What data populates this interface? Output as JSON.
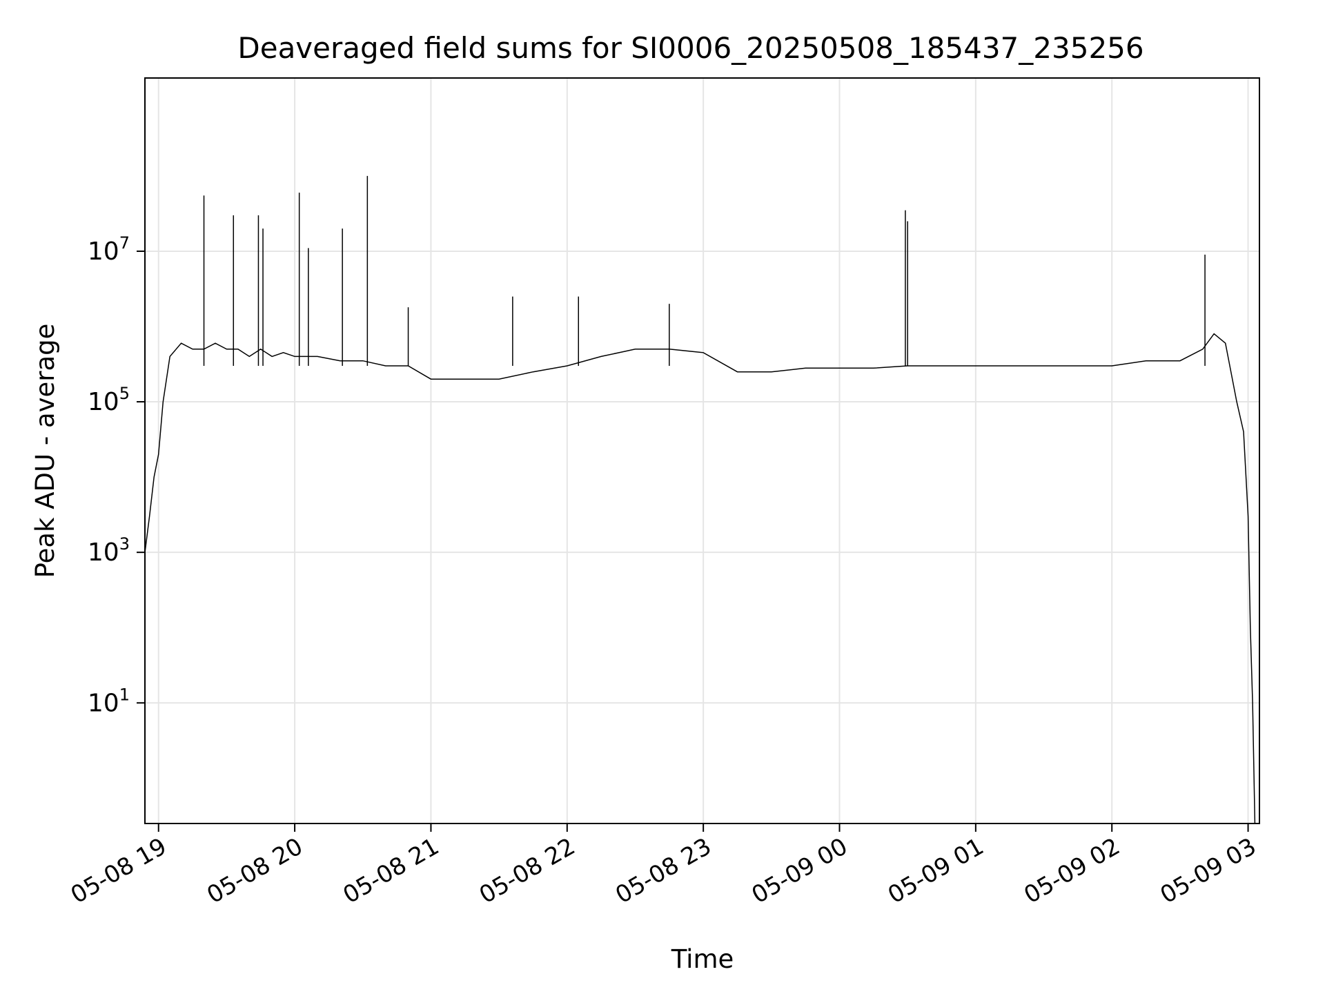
{
  "chart_data": {
    "type": "line",
    "title": "Deaveraged field sums for SI0006_20250508_185437_235256",
    "xlabel": "Time",
    "ylabel": "Peak ADU - average",
    "y_scale": "log",
    "grid": true,
    "legend": "none",
    "x_range": [
      "05-08 18:54",
      "05-09 03:05"
    ],
    "ylim": [
      0.25,
      2000000000
    ],
    "x_tick_labels": [
      "05-08 19",
      "05-08 20",
      "05-08 21",
      "05-08 22",
      "05-08 23",
      "05-09 00",
      "05-09 01",
      "05-09 02",
      "05-09 03"
    ],
    "x_ticks": [
      "05-08 19:00",
      "05-08 20:00",
      "05-08 21:00",
      "05-08 22:00",
      "05-08 23:00",
      "05-09 00:00",
      "05-09 01:00",
      "05-09 02:00",
      "05-09 03:00"
    ],
    "y_tick_labels": [
      {
        "base": "10",
        "exp": "1",
        "value": 10
      },
      {
        "base": "10",
        "exp": "3",
        "value": 1000
      },
      {
        "base": "10",
        "exp": "5",
        "value": 100000
      },
      {
        "base": "10",
        "exp": "7",
        "value": 10000000
      }
    ],
    "colors": {
      "line": "#000000",
      "grid": "#e5e5e5",
      "axes": "#000000"
    },
    "series": [
      {
        "x": [
          "05-08 18:54",
          "05-08 18:56",
          "05-08 18:58",
          "05-08 19:00",
          "05-08 19:02",
          "05-08 19:05",
          "05-08 19:10",
          "05-08 19:15",
          "05-08 19:20",
          "05-08 19:25",
          "05-08 19:30",
          "05-08 19:35",
          "05-08 19:40",
          "05-08 19:45",
          "05-08 19:50",
          "05-08 19:55",
          "05-08 20:00",
          "05-08 20:10",
          "05-08 20:20",
          "05-08 20:30",
          "05-08 20:40",
          "05-08 20:50",
          "05-08 21:00",
          "05-08 21:15",
          "05-08 21:30",
          "05-08 21:45",
          "05-08 22:00",
          "05-08 22:15",
          "05-08 22:30",
          "05-08 22:45",
          "05-08 23:00",
          "05-08 23:15",
          "05-08 23:30",
          "05-08 23:45",
          "05-09 00:00",
          "05-09 00:15",
          "05-09 00:30",
          "05-09 00:45",
          "05-09 01:00",
          "05-09 01:15",
          "05-09 01:30",
          "05-09 01:45",
          "05-09 02:00",
          "05-09 02:15",
          "05-09 02:30",
          "05-09 02:40",
          "05-09 02:45",
          "05-09 02:50",
          "05-09 02:55",
          "05-09 02:58",
          "05-09 03:00",
          "05-09 03:01",
          "05-09 03:02",
          "05-09 03:03"
        ],
        "y": [
          1000,
          3000,
          10000,
          20000,
          100000,
          400000,
          600000,
          500000,
          500000,
          600000,
          500000,
          500000,
          400000,
          500000,
          400000,
          450000,
          400000,
          400000,
          350000,
          350000,
          300000,
          300000,
          200000,
          200000,
          200000,
          250000,
          300000,
          400000,
          500000,
          500000,
          450000,
          250000,
          250000,
          280000,
          280000,
          280000,
          300000,
          300000,
          300000,
          300000,
          300000,
          300000,
          300000,
          350000,
          350000,
          500000,
          800000,
          600000,
          100000,
          40000,
          3000,
          100,
          10,
          0.25
        ]
      }
    ],
    "spikes": [
      {
        "x": "05-08 19:20",
        "y": 55000000
      },
      {
        "x": "05-08 19:33",
        "y": 30000000
      },
      {
        "x": "05-08 19:44",
        "y": 30000000
      },
      {
        "x": "05-08 19:46",
        "y": 20000000
      },
      {
        "x": "05-08 20:02",
        "y": 60000000
      },
      {
        "x": "05-08 20:06",
        "y": 11000000
      },
      {
        "x": "05-08 20:21",
        "y": 20000000
      },
      {
        "x": "05-08 20:32",
        "y": 100000000
      },
      {
        "x": "05-08 20:50",
        "y": 1800000
      },
      {
        "x": "05-08 21:36",
        "y": 2500000
      },
      {
        "x": "05-08 22:05",
        "y": 2500000
      },
      {
        "x": "05-08 22:45",
        "y": 2000000
      },
      {
        "x": "05-09 00:29",
        "y": 35000000
      },
      {
        "x": "05-09 00:30",
        "y": 25000000
      },
      {
        "x": "05-09 02:41",
        "y": 9000000
      }
    ]
  }
}
